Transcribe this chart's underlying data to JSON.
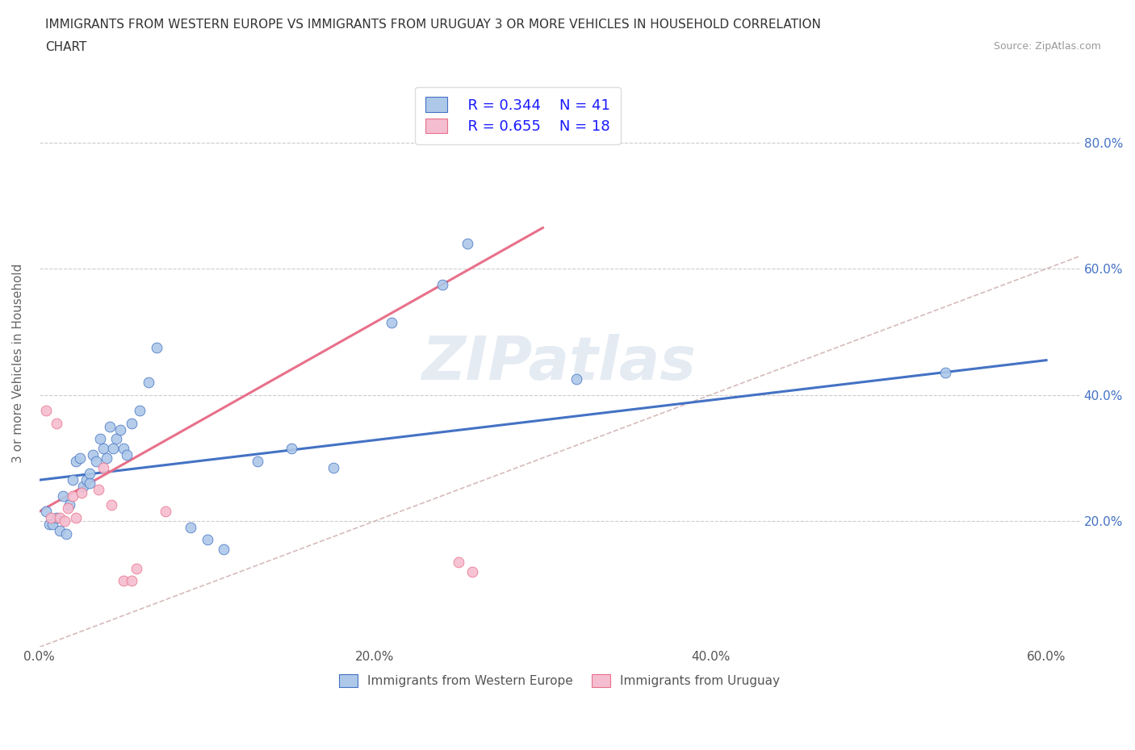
{
  "title_line1": "IMMIGRANTS FROM WESTERN EUROPE VS IMMIGRANTS FROM URUGUAY 3 OR MORE VEHICLES IN HOUSEHOLD CORRELATION",
  "title_line2": "CHART",
  "source": "Source: ZipAtlas.com",
  "ylabel": "3 or more Vehicles in Household",
  "xlim": [
    0.0,
    0.62
  ],
  "ylim": [
    0.0,
    0.9
  ],
  "xtick_vals": [
    0.0,
    0.2,
    0.4,
    0.6
  ],
  "xtick_labels": [
    "0.0%",
    "20.0%",
    "40.0%",
    "60.0%"
  ],
  "ytick_vals": [
    0.2,
    0.4,
    0.6,
    0.8
  ],
  "ytick_labels": [
    "20.0%",
    "40.0%",
    "60.0%",
    "80.0%"
  ],
  "blue_fill": "#adc8e8",
  "blue_edge": "#4472c4",
  "pink_fill": "#f5bdd0",
  "pink_edge": "#e8708a",
  "diag_color": "#ccaaaa",
  "watermark": "ZIPatlas",
  "legend_R1": "R = 0.344",
  "legend_N1": "N = 41",
  "legend_R2": "R = 0.655",
  "legend_N2": "N = 18",
  "blue_scatter_x": [
    0.004,
    0.006,
    0.008,
    0.01,
    0.012,
    0.014,
    0.016,
    0.018,
    0.02,
    0.022,
    0.024,
    0.026,
    0.028,
    0.03,
    0.03,
    0.032,
    0.034,
    0.036,
    0.038,
    0.04,
    0.042,
    0.044,
    0.046,
    0.048,
    0.05,
    0.052,
    0.055,
    0.06,
    0.065,
    0.07,
    0.09,
    0.1,
    0.11,
    0.13,
    0.15,
    0.175,
    0.21,
    0.24,
    0.255,
    0.32,
    0.54
  ],
  "blue_scatter_y": [
    0.215,
    0.195,
    0.195,
    0.205,
    0.185,
    0.24,
    0.18,
    0.225,
    0.265,
    0.295,
    0.3,
    0.255,
    0.265,
    0.26,
    0.275,
    0.305,
    0.295,
    0.33,
    0.315,
    0.3,
    0.35,
    0.315,
    0.33,
    0.345,
    0.315,
    0.305,
    0.355,
    0.375,
    0.42,
    0.475,
    0.19,
    0.17,
    0.155,
    0.295,
    0.315,
    0.285,
    0.515,
    0.575,
    0.64,
    0.425,
    0.435
  ],
  "pink_scatter_x": [
    0.004,
    0.007,
    0.01,
    0.012,
    0.015,
    0.017,
    0.02,
    0.022,
    0.025,
    0.035,
    0.038,
    0.043,
    0.05,
    0.055,
    0.058,
    0.075,
    0.25,
    0.258
  ],
  "pink_scatter_y": [
    0.375,
    0.205,
    0.355,
    0.205,
    0.2,
    0.22,
    0.24,
    0.205,
    0.245,
    0.25,
    0.285,
    0.225,
    0.105,
    0.105,
    0.125,
    0.215,
    0.135,
    0.12
  ],
  "blue_line_x": [
    0.0,
    0.6
  ],
  "blue_line_y": [
    0.265,
    0.455
  ],
  "pink_line_x": [
    0.0,
    0.3
  ],
  "pink_line_y": [
    0.215,
    0.665
  ],
  "bottom_legend_labels": [
    "Immigrants from Western Europe",
    "Immigrants from Uruguay"
  ]
}
